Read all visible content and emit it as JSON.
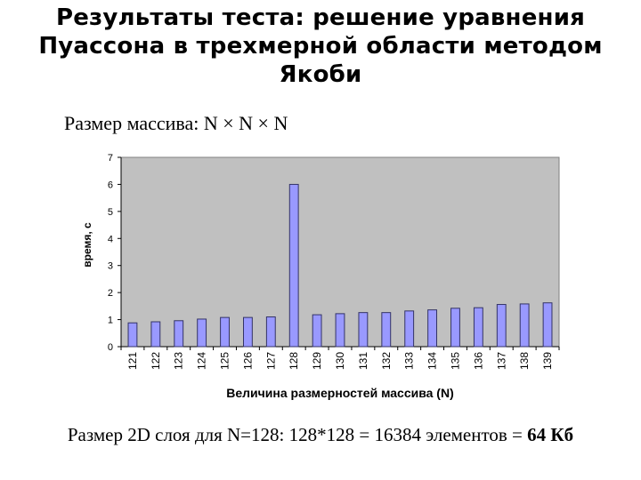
{
  "title_lines": [
    "Результаты теста: решение уравнения",
    "Пуассона в трехмерной области методом",
    "Якоби"
  ],
  "subtitle": "Размер массива: N × N × N",
  "footer": {
    "text": "Размер 2D слоя для N=128: 128*128 = 16384 элементов = ",
    "bold": "64 Кб"
  },
  "chart_data": {
    "type": "bar",
    "categories": [
      "121",
      "122",
      "123",
      "124",
      "125",
      "126",
      "127",
      "128",
      "129",
      "130",
      "131",
      "132",
      "133",
      "134",
      "135",
      "136",
      "137",
      "138",
      "139"
    ],
    "values": [
      0.88,
      0.92,
      0.96,
      1.02,
      1.08,
      1.08,
      1.1,
      6.0,
      1.18,
      1.22,
      1.26,
      1.26,
      1.32,
      1.36,
      1.42,
      1.44,
      1.56,
      1.58,
      1.62
    ],
    "xlabel": "Величина размерностей массива (N)",
    "ylabel": "время, с",
    "ylim": [
      0,
      7
    ],
    "yticks": [
      0,
      1,
      2,
      3,
      4,
      5,
      6,
      7
    ],
    "grid": false,
    "legend": "none",
    "colors": {
      "bar_fill": "#9999ff",
      "bar_stroke": "#333366",
      "plot_bg": "#c0c0c0"
    }
  }
}
